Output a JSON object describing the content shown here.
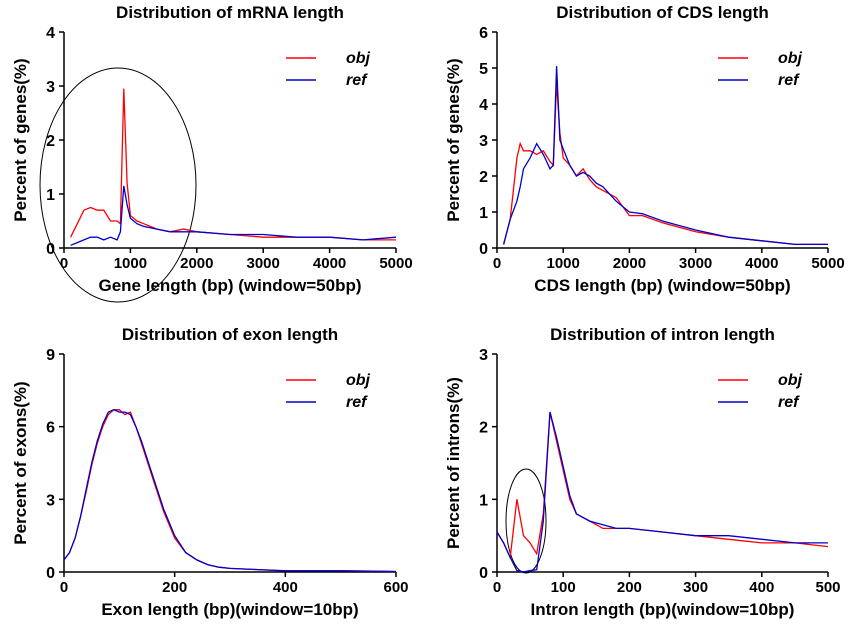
{
  "chart_data": [
    {
      "type": "line",
      "title": "Distribution of mRNA length",
      "xlabel": "Gene length (bp) (window=50bp)",
      "ylabel": "Percent of genes(%)",
      "xlim": [
        0,
        5000
      ],
      "xticks": [
        0,
        1000,
        2000,
        3000,
        4000,
        5000
      ],
      "ylim": [
        0,
        4
      ],
      "yticks": [
        0,
        1,
        2,
        3,
        4
      ],
      "legend": "upper right",
      "x": [
        100,
        200,
        300,
        400,
        500,
        600,
        700,
        800,
        850,
        900,
        950,
        1000,
        1100,
        1200,
        1400,
        1600,
        1800,
        2000,
        2500,
        3000,
        3500,
        4000,
        4500,
        5000
      ],
      "series": [
        {
          "name": "obj",
          "color": "#ff0000",
          "values": [
            0.2,
            0.45,
            0.7,
            0.75,
            0.7,
            0.7,
            0.5,
            0.5,
            0.45,
            2.95,
            1.2,
            0.6,
            0.5,
            0.45,
            0.35,
            0.3,
            0.35,
            0.3,
            0.25,
            0.2,
            0.2,
            0.2,
            0.15,
            0.15
          ]
        },
        {
          "name": "ref",
          "color": "#0000cc",
          "values": [
            0.05,
            0.1,
            0.15,
            0.2,
            0.2,
            0.15,
            0.2,
            0.15,
            0.3,
            1.15,
            0.8,
            0.55,
            0.45,
            0.4,
            0.35,
            0.3,
            0.3,
            0.3,
            0.25,
            0.25,
            0.2,
            0.2,
            0.15,
            0.2
          ]
        }
      ]
    },
    {
      "type": "line",
      "title": "Distribution of CDS length",
      "xlabel": "CDS length (bp) (window=50bp)",
      "ylabel": "Percent of genes(%)",
      "xlim": [
        0,
        5000
      ],
      "xticks": [
        0,
        1000,
        2000,
        3000,
        4000,
        5000
      ],
      "ylim": [
        0,
        6
      ],
      "yticks": [
        0,
        1,
        2,
        3,
        4,
        5,
        6
      ],
      "legend": "upper right",
      "x": [
        100,
        200,
        300,
        350,
        400,
        500,
        600,
        700,
        800,
        850,
        900,
        950,
        1000,
        1100,
        1200,
        1300,
        1400,
        1500,
        1600,
        1800,
        2000,
        2200,
        2500,
        3000,
        3500,
        4000,
        4500,
        5000
      ],
      "series": [
        {
          "name": "obj",
          "color": "#ff0000",
          "values": [
            0.1,
            0.8,
            2.5,
            2.9,
            2.7,
            2.7,
            2.6,
            2.7,
            2.4,
            2.3,
            4.6,
            3.2,
            2.5,
            2.3,
            2.0,
            2.2,
            1.9,
            1.7,
            1.6,
            1.4,
            0.9,
            0.9,
            0.7,
            0.45,
            0.3,
            0.2,
            0.1,
            0.1
          ]
        },
        {
          "name": "ref",
          "color": "#0000cc",
          "values": [
            0.1,
            0.8,
            1.3,
            1.7,
            2.2,
            2.5,
            2.9,
            2.6,
            2.2,
            2.3,
            5.05,
            3.0,
            2.75,
            2.3,
            2.0,
            2.1,
            2.0,
            1.8,
            1.7,
            1.3,
            1.0,
            0.95,
            0.75,
            0.5,
            0.3,
            0.2,
            0.1,
            0.1
          ]
        }
      ]
    },
    {
      "type": "line",
      "title": "Distribution of exon length",
      "xlabel": "Exon length (bp)(window=10bp)",
      "ylabel": "Percent of exons(%)",
      "xlim": [
        0,
        600
      ],
      "xticks": [
        0,
        200,
        400,
        600
      ],
      "ylim": [
        0,
        9
      ],
      "yticks": [
        0,
        3,
        6,
        9
      ],
      "legend": "upper right",
      "x": [
        0,
        10,
        20,
        30,
        40,
        50,
        60,
        70,
        80,
        90,
        100,
        110,
        120,
        130,
        140,
        150,
        160,
        170,
        180,
        200,
        220,
        240,
        260,
        280,
        300,
        350,
        400,
        500,
        600
      ],
      "series": [
        {
          "name": "obj",
          "color": "#ff0000",
          "values": [
            0.5,
            0.8,
            1.4,
            2.3,
            3.3,
            4.4,
            5.3,
            6.0,
            6.5,
            6.7,
            6.7,
            6.5,
            6.6,
            6.0,
            5.3,
            4.6,
            3.9,
            3.2,
            2.5,
            1.4,
            0.8,
            0.5,
            0.3,
            0.2,
            0.15,
            0.1,
            0.05,
            0.05,
            0.02
          ]
        },
        {
          "name": "ref",
          "color": "#0000cc",
          "values": [
            0.5,
            0.8,
            1.4,
            2.3,
            3.4,
            4.5,
            5.4,
            6.1,
            6.6,
            6.7,
            6.6,
            6.6,
            6.5,
            6.0,
            5.4,
            4.7,
            4.0,
            3.3,
            2.6,
            1.5,
            0.8,
            0.5,
            0.3,
            0.2,
            0.15,
            0.1,
            0.05,
            0.05,
            0.02
          ]
        }
      ]
    },
    {
      "type": "line",
      "title": "Distribution of intron length",
      "xlabel": "Intron length (bp)(window=10bp)",
      "ylabel": "Percent of introns(%)",
      "xlim": [
        0,
        500
      ],
      "xticks": [
        0,
        100,
        200,
        300,
        400,
        500
      ],
      "ylim": [
        0,
        3
      ],
      "yticks": [
        0,
        1,
        2,
        3
      ],
      "legend": "upper right",
      "x": [
        0,
        10,
        20,
        30,
        40,
        50,
        60,
        70,
        80,
        90,
        100,
        110,
        120,
        140,
        160,
        180,
        200,
        250,
        300,
        350,
        400,
        450,
        500
      ],
      "series": [
        {
          "name": "obj",
          "color": "#ff0000",
          "values": [
            0.55,
            0.4,
            0.2,
            1.0,
            0.5,
            0.4,
            0.25,
            0.8,
            2.2,
            1.8,
            1.4,
            1.0,
            0.8,
            0.7,
            0.6,
            0.6,
            0.6,
            0.55,
            0.5,
            0.45,
            0.4,
            0.4,
            0.35
          ]
        },
        {
          "name": "ref",
          "color": "#0000cc",
          "values": [
            0.55,
            0.4,
            0.2,
            0.02,
            0.0,
            0.02,
            0.03,
            0.7,
            2.2,
            1.85,
            1.45,
            1.05,
            0.8,
            0.7,
            0.65,
            0.6,
            0.6,
            0.55,
            0.5,
            0.5,
            0.45,
            0.4,
            0.4
          ]
        }
      ]
    }
  ]
}
